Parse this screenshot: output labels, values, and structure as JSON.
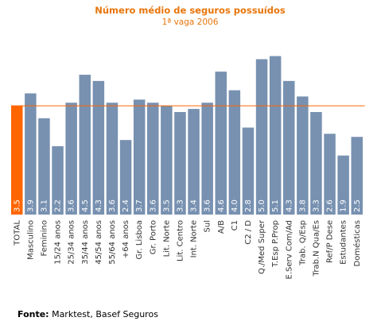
{
  "chart_data": {
    "type": "bar",
    "title": "Número médio de seguros possuídos",
    "subtitle": "1ª vaga 2006",
    "categories": [
      "TOTAL",
      "Masculino",
      "Feminino",
      "15/24 anos",
      "25/34 anos",
      "35/44 anos",
      "45/54 anos",
      "55/64 anos",
      "+64 anos",
      "Gr. Lisboa",
      "Gr. Porto",
      "Lit. Norte",
      "Lit. Centro",
      "Int. Norte",
      "Sul",
      "A/B",
      "C1",
      "C2 / D",
      "Q./Med Super",
      "T.Esp P.Prop",
      "E.Serv Com/Ad",
      "Trab. Q/Esp",
      "Trab.N Qua/Es",
      "Ref/P Dese",
      "Estudantes",
      "Domésticas"
    ],
    "values": [
      3.5,
      3.9,
      3.1,
      2.2,
      3.6,
      4.5,
      4.3,
      3.6,
      2.4,
      3.7,
      3.6,
      3.5,
      3.3,
      3.4,
      3.6,
      4.6,
      4.0,
      2.8,
      5.0,
      5.1,
      4.3,
      3.8,
      3.3,
      2.6,
      1.9,
      2.5
    ],
    "value_labels": [
      "3.5",
      "3.9",
      "3.1",
      "2.2",
      "3.6",
      "4.5",
      "4.3",
      "3.6",
      "2.4",
      "3.7",
      "3.6",
      "3.5",
      "3.3",
      "3.4",
      "3.6",
      "4.6",
      "4.0",
      "2.8",
      "5.0",
      "5.1",
      "4.3",
      "3.8",
      "3.3",
      "2.6",
      "1.9",
      "2.5"
    ],
    "color": "#7891b1",
    "highlight_color": "#ff6600",
    "source_label": "Fonte:",
    "source": "Marktest, Basef Seguros"
  }
}
